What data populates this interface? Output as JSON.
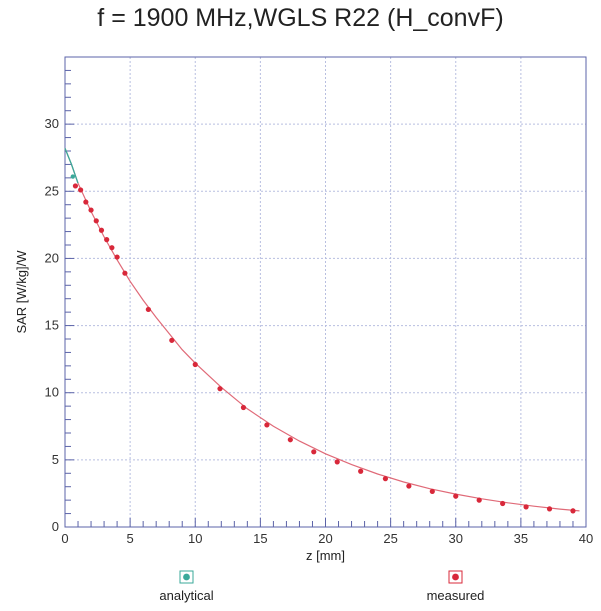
{
  "title": "f = 1900 MHz,WGLS R22 (H_convF)",
  "colors": {
    "frame": "#5b63a8",
    "grid": "#b8bfe0",
    "analytical": "#3aa99a",
    "measured": "#d8283a",
    "curve": "#e06a78"
  },
  "chart_data": {
    "type": "line",
    "title": "f = 1900 MHz,WGLS R22 (H_convF)",
    "xlabel": "z [mm]",
    "ylabel": "SAR [W/kg]/W",
    "xlim": [
      0,
      40
    ],
    "ylim": [
      0,
      35
    ],
    "xticks": [
      0,
      5,
      10,
      15,
      20,
      25,
      30,
      35,
      40
    ],
    "yticks": [
      0,
      5,
      10,
      15,
      20,
      25,
      30
    ],
    "grid": true,
    "legend_position": "bottom",
    "series": [
      {
        "name": "analytical",
        "marker": "none",
        "x": [
          0,
          0.5,
          1,
          2,
          3,
          4,
          5,
          6,
          7,
          8,
          9,
          10,
          12,
          14,
          16,
          18,
          20,
          22,
          24,
          26,
          28,
          30,
          32,
          34,
          36,
          38,
          39.5
        ],
        "y": [
          28.2,
          27.0,
          25.6,
          23.5,
          21.6,
          19.9,
          18.3,
          16.9,
          15.6,
          14.4,
          13.2,
          12.2,
          10.4,
          8.8,
          7.5,
          6.4,
          5.45,
          4.65,
          3.95,
          3.35,
          2.85,
          2.45,
          2.1,
          1.8,
          1.55,
          1.33,
          1.2
        ]
      },
      {
        "name": "measured",
        "marker": "circle",
        "x": [
          0.8,
          1.2,
          1.6,
          2.0,
          2.4,
          2.8,
          3.2,
          3.6,
          4.0,
          4.6,
          6.4,
          8.2,
          10.0,
          11.9,
          13.7,
          15.5,
          17.3,
          19.1,
          20.9,
          22.7,
          24.6,
          26.4,
          28.2,
          30.0,
          31.8,
          33.6,
          35.4,
          37.2,
          39.0
        ],
        "y": [
          25.4,
          25.1,
          24.2,
          23.6,
          22.8,
          22.1,
          21.4,
          20.8,
          20.1,
          18.9,
          16.2,
          13.9,
          12.1,
          10.3,
          8.9,
          7.6,
          6.5,
          5.6,
          4.85,
          4.15,
          3.6,
          3.05,
          2.65,
          2.3,
          2.0,
          1.75,
          1.5,
          1.35,
          1.2
        ]
      }
    ],
    "extra_points": [
      {
        "series": "analytical",
        "x": 0.6,
        "y": 26.1
      }
    ]
  }
}
